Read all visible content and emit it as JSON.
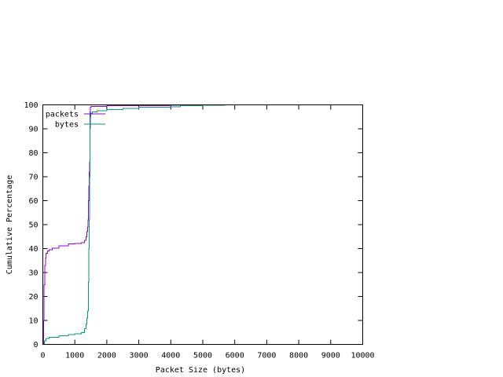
{
  "chart_data": {
    "type": "line",
    "title": "",
    "xlabel": "Packet Size (bytes)",
    "ylabel": "Cumulative Percentage",
    "xlim": [
      0,
      10000
    ],
    "ylim": [
      0,
      100
    ],
    "xticks": [
      0,
      1000,
      2000,
      3000,
      4000,
      5000,
      6000,
      7000,
      8000,
      9000,
      10000
    ],
    "yticks": [
      0,
      10,
      20,
      30,
      40,
      50,
      60,
      70,
      80,
      90,
      100
    ],
    "grid": false,
    "legend_position": "top-left",
    "series": [
      {
        "name": "packets",
        "color": "#9400d3",
        "x": [
          0,
          20,
          40,
          60,
          80,
          100,
          150,
          200,
          300,
          500,
          800,
          1000,
          1200,
          1300,
          1350,
          1380,
          1400,
          1410,
          1420,
          1430,
          1440,
          1450,
          1460,
          1470,
          1480,
          1490,
          1500,
          1520,
          1600,
          2000,
          3000,
          4000,
          4300,
          5000,
          5700
        ],
        "y": [
          0,
          10,
          25,
          33,
          36,
          38,
          39,
          39.5,
          40.2,
          41.2,
          41.9,
          42.2,
          42.5,
          43.5,
          45,
          47,
          49,
          52,
          56,
          60,
          66,
          72,
          76,
          90,
          97,
          99,
          99.2,
          99.3,
          99.4,
          99.6,
          99.7,
          99.8,
          99.9,
          99.95,
          100
        ]
      },
      {
        "name": "bytes",
        "color": "#009e73",
        "x": [
          0,
          50,
          100,
          200,
          500,
          800,
          1000,
          1200,
          1300,
          1350,
          1380,
          1400,
          1420,
          1440,
          1450,
          1460,
          1470,
          1480,
          1490,
          1500,
          1550,
          1700,
          2000,
          2500,
          3000,
          4000,
          4300,
          5000,
          5700
        ],
        "y": [
          0,
          1.5,
          2.5,
          3,
          3.6,
          4.1,
          4.4,
          5,
          6.5,
          8.5,
          11,
          14,
          26,
          40,
          52,
          70,
          80,
          90,
          95,
          96.5,
          97,
          97.5,
          98,
          98.5,
          99,
          99.2,
          99.6,
          99.8,
          100
        ]
      }
    ]
  }
}
